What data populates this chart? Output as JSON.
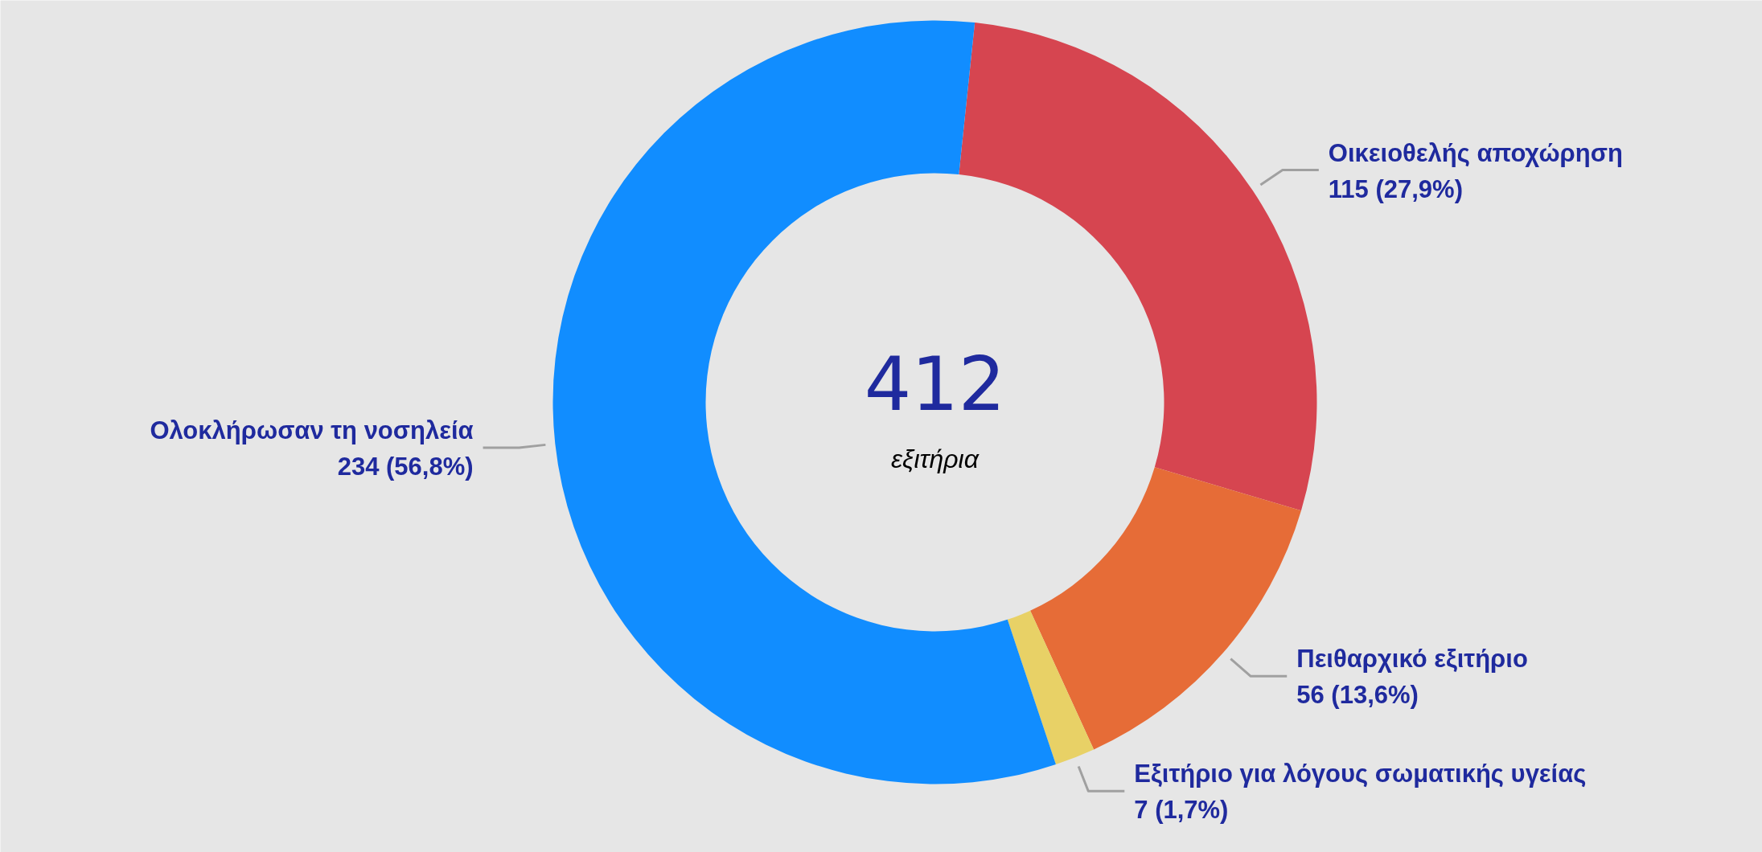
{
  "chart_data": {
    "type": "donut",
    "categories": [
      "Οικειοθελής αποχώρηση",
      "Πειθαρχικό εξιτήριο",
      "Εξιτήριο για λόγους σωματικής υγείας",
      "Ολοκλήρωσαν τη νοσηλεία"
    ],
    "values": [
      115,
      56,
      7,
      234
    ],
    "colors": [
      "#d64550",
      "#e66c37",
      "#e8d166",
      "#118dff"
    ],
    "value_labels": [
      "115 (27,9%)",
      "56 (13,6%)",
      "7 (1,7%)",
      "234 (56,8%)"
    ],
    "annotations": [
      "412",
      "εξιτήρια"
    ]
  }
}
